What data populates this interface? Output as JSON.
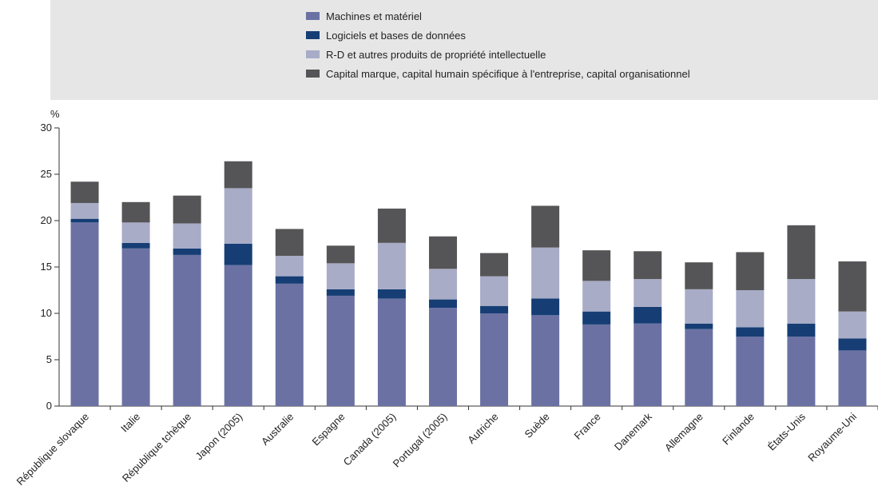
{
  "chart_data": {
    "type": "bar",
    "stacked": true,
    "ylabel": "%",
    "ylim": [
      0,
      30
    ],
    "yticks": [
      "0",
      "5",
      "10",
      "15",
      "20",
      "25",
      "30"
    ],
    "grid": false,
    "legend_position": "top",
    "categories": [
      "République slovaque",
      "Italie",
      "République tchèque",
      "Japon (2005)",
      "Australie",
      "Espagne",
      "Canada (2005)",
      "Portugal (2005)",
      "Autriche",
      "Suède",
      "France",
      "Danemark",
      "Allemagne",
      "Finlande",
      "États-Unis",
      "Royaume-Uni"
    ],
    "series": [
      {
        "name": "Machines et matériel",
        "color": "#6b72a3",
        "values": [
          19.8,
          17.0,
          16.3,
          15.2,
          13.2,
          11.9,
          11.6,
          10.6,
          10.0,
          9.8,
          8.8,
          8.9,
          8.3,
          7.5,
          7.5,
          6.0
        ]
      },
      {
        "name": "Logiciels et bases de données",
        "color": "#163e75",
        "values": [
          0.4,
          0.6,
          0.7,
          2.3,
          0.8,
          0.7,
          1.0,
          0.9,
          0.8,
          1.8,
          1.4,
          1.8,
          0.6,
          1.0,
          1.4,
          1.3
        ]
      },
      {
        "name": "R-D et autres produits de propriété intellectuelle",
        "color": "#a8acc6",
        "values": [
          1.7,
          2.2,
          2.7,
          6.0,
          2.2,
          2.8,
          5.0,
          3.3,
          3.2,
          5.5,
          3.3,
          3.0,
          3.7,
          4.0,
          4.8,
          2.9
        ]
      },
      {
        "name": "Capital marque, capital humain spécifique à l'entreprise, capital organisationnel",
        "color": "#555557",
        "values": [
          2.3,
          2.2,
          3.0,
          2.9,
          2.9,
          1.9,
          3.7,
          3.5,
          2.5,
          4.5,
          3.3,
          3.0,
          2.9,
          4.1,
          5.8,
          5.4
        ]
      }
    ]
  }
}
